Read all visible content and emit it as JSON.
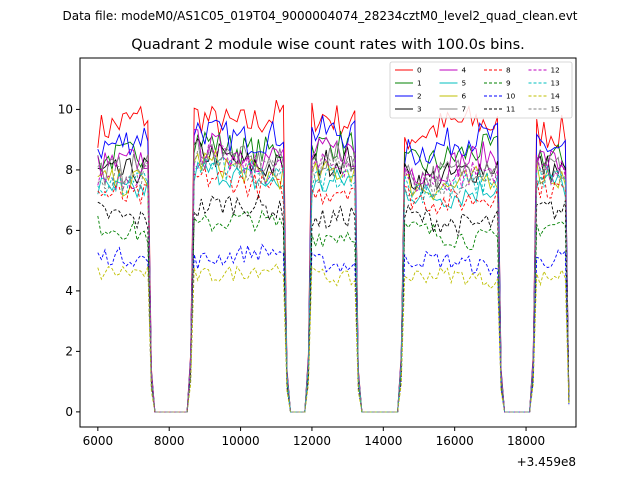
{
  "figure": {
    "suptitle": "Data file: modeM0/AS1C05_019T04_9000004074_28234cztM0_level2_quad_clean.evt"
  },
  "chart_data": {
    "type": "line",
    "title": "Quadrant 2 module wise count rates with 100.0s bins.",
    "xlabel": "",
    "ylabel": "",
    "x_offset_label": "+3.459e8",
    "xlim": [
      5500,
      19400
    ],
    "ylim": [
      -0.5,
      11.7
    ],
    "xticks": [
      6000,
      8000,
      10000,
      12000,
      14000,
      16000,
      18000
    ],
    "yticks": [
      0,
      2,
      4,
      6,
      8,
      10
    ],
    "grid": false,
    "legend": {
      "position": "top-right",
      "columns": 4
    },
    "gaps": [
      [
        7500,
        8600
      ],
      [
        11300,
        11900
      ],
      [
        13300,
        14600
      ],
      [
        17300,
        18200
      ]
    ],
    "orbit_segments": [
      {
        "x_start": 6000,
        "x_end": 7400,
        "level_factor": 1.0
      },
      {
        "x_start": 8700,
        "x_end": 11200,
        "level_factor": 1.03
      },
      {
        "x_start": 12000,
        "x_end": 13200,
        "level_factor": 1.0
      },
      {
        "x_start": 14600,
        "x_end": 17200,
        "level_factor": 0.98
      },
      {
        "x_start": 18300,
        "x_end": 19100,
        "level_factor": 1.0
      }
    ],
    "series": [
      {
        "name": "0",
        "color": "#ff0000",
        "dash": false,
        "level": 9.5
      },
      {
        "name": "1",
        "color": "#008000",
        "dash": false,
        "level": 8.6
      },
      {
        "name": "2",
        "color": "#0000ff",
        "dash": false,
        "level": 9.0
      },
      {
        "name": "3",
        "color": "#000000",
        "dash": false,
        "level": 8.1
      },
      {
        "name": "4",
        "color": "#bf00bf",
        "dash": false,
        "level": 8.4
      },
      {
        "name": "5",
        "color": "#00bfbf",
        "dash": false,
        "level": 7.5
      },
      {
        "name": "6",
        "color": "#bfbf00",
        "dash": false,
        "level": 7.8
      },
      {
        "name": "7",
        "color": "#808080",
        "dash": false,
        "level": 8.2
      },
      {
        "name": "8",
        "color": "#ff0000",
        "dash": true,
        "level": 7.3
      },
      {
        "name": "9",
        "color": "#008000",
        "dash": true,
        "level": 6.0
      },
      {
        "name": "10",
        "color": "#0000ff",
        "dash": true,
        "level": 5.0
      },
      {
        "name": "11",
        "color": "#000000",
        "dash": true,
        "level": 6.5
      },
      {
        "name": "12",
        "color": "#bf00bf",
        "dash": true,
        "level": 8.0
      },
      {
        "name": "13",
        "color": "#00bfbf",
        "dash": true,
        "level": 7.7
      },
      {
        "name": "14",
        "color": "#bfbf00",
        "dash": true,
        "level": 4.5
      },
      {
        "name": "15",
        "color": "#808080",
        "dash": true,
        "level": 7.9
      }
    ]
  }
}
